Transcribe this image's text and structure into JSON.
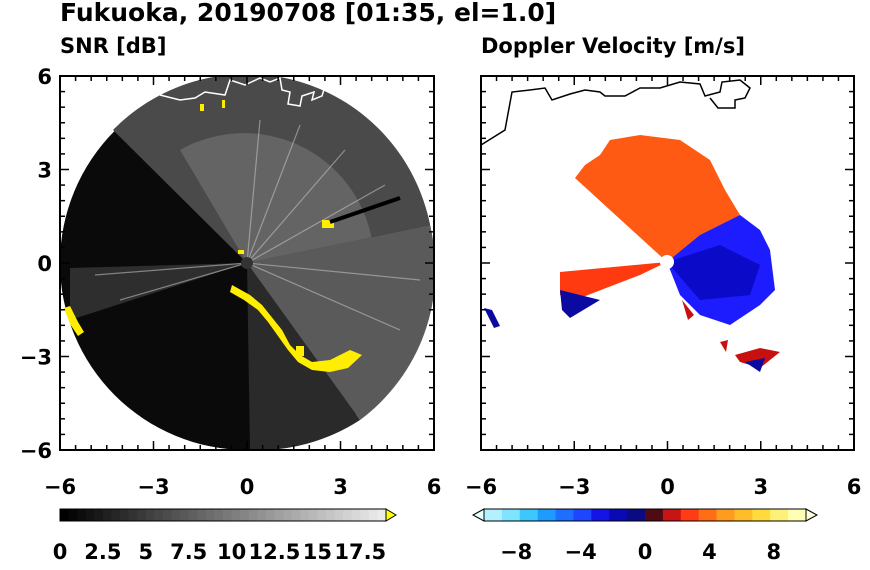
{
  "figure": {
    "title": "Fukuoka, 20190708 [01:35, el=1.0]"
  },
  "chart_data": [
    {
      "type": "heatmap",
      "title": "SNR [dB]",
      "projection": "polar (PPI)",
      "xlim": [
        -6,
        6
      ],
      "ylim": [
        -6,
        6
      ],
      "xticks": [
        "−6",
        "−3",
        "0",
        "3",
        "6"
      ],
      "yticks": [
        "6",
        "3",
        "0",
        "−3",
        "−6"
      ],
      "range_ring_radius": 6,
      "colormap": "gray (black to white) with yellow over-range",
      "colorbar": {
        "min": 0,
        "max": 19,
        "extend": "max",
        "ticks": [
          "0",
          "2.5",
          "5",
          "7.5",
          "10",
          "12.5",
          "15",
          "17.5"
        ],
        "tick_values": [
          0,
          2.5,
          5,
          7.5,
          10,
          12.5,
          15,
          17.5
        ]
      },
      "colors": {
        "low": "#000000",
        "high": "#ffffff",
        "over": "#ffff00"
      }
    },
    {
      "type": "heatmap",
      "title": "Doppler Velocity [m/s]",
      "projection": "polar (PPI)",
      "xlim": [
        -6,
        6
      ],
      "ylim": [
        -6,
        6
      ],
      "xticks": [
        "−6",
        "−3",
        "0",
        "3",
        "6"
      ],
      "yticks": [
        "6",
        "3",
        "0",
        "−3",
        "−6"
      ],
      "colormap": "diverging blue–red",
      "colorbar": {
        "min": -10,
        "max": 10,
        "extend": "both",
        "ticks": [
          "−8",
          "−4",
          "0",
          "4",
          "8"
        ],
        "tick_values": [
          -8,
          -4,
          0,
          4,
          8
        ]
      },
      "colors": {
        "negative": "#1a1aff",
        "positive": "#ff5a14"
      }
    }
  ]
}
